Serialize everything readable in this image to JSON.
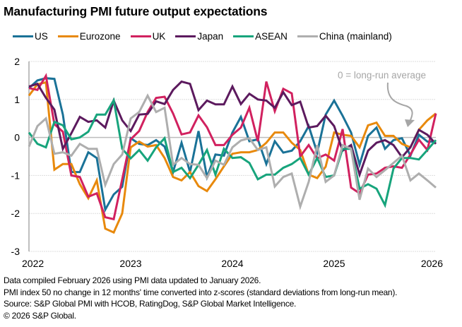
{
  "title": "Manufacturing PMI future output expectations",
  "chart_data": {
    "type": "line",
    "title": "Manufacturing PMI future output expectations",
    "xlabel": "",
    "ylabel": "",
    "ylim": [
      -3,
      2
    ],
    "yticks": [
      2,
      1,
      0,
      -1,
      -2,
      -3
    ],
    "ytick_labels": [
      "2",
      "1",
      "0",
      "-1",
      "-2",
      "-3"
    ],
    "xlim": [
      "2022-01",
      "2026-01"
    ],
    "xticks": [
      "2022",
      "2023",
      "2024",
      "2025",
      "2026"
    ],
    "grid": "horizontal",
    "legend_position": "top",
    "x": [
      "2022-01",
      "2022-02",
      "2022-03",
      "2022-04",
      "2022-05",
      "2022-06",
      "2022-07",
      "2022-08",
      "2022-09",
      "2022-10",
      "2022-11",
      "2022-12",
      "2023-01",
      "2023-02",
      "2023-03",
      "2023-04",
      "2023-05",
      "2023-06",
      "2023-07",
      "2023-08",
      "2023-09",
      "2023-10",
      "2023-11",
      "2023-12",
      "2024-01",
      "2024-02",
      "2024-03",
      "2024-04",
      "2024-05",
      "2024-06",
      "2024-07",
      "2024-08",
      "2024-09",
      "2024-10",
      "2024-11",
      "2024-12",
      "2025-01",
      "2025-02",
      "2025-03",
      "2025-04",
      "2025-05",
      "2025-06",
      "2025-07",
      "2025-08",
      "2025-09",
      "2025-10",
      "2025-11",
      "2025-12",
      "2026-01"
    ],
    "series": [
      {
        "name": "US",
        "color": "#1a7297",
        "values": [
          1.3,
          1.5,
          1.56,
          1.54,
          0.6,
          -0.91,
          -0.91,
          -0.39,
          -0.54,
          -1.9,
          -1.5,
          -1.3,
          -0.02,
          -0.17,
          -0.2,
          -0.07,
          -0.24,
          -0.91,
          -0.14,
          -0.91,
          0.17,
          -1.04,
          -0.45,
          -0.48,
          0.13,
          0.54,
          -0.1,
          -0.05,
          -0.7,
          -0.1,
          -0.4,
          -0.35,
          -0.1,
          0.3,
          -0.4,
          0.6,
          0.97,
          0.57,
          0.13,
          -0.72,
          0.04,
          0.26,
          -0.3,
          -0.07,
          -0.02,
          -0.48,
          0.07,
          -0.11,
          -0.11
        ]
      },
      {
        "name": "Eurozone",
        "color": "#e8890c",
        "values": [
          1.1,
          1.4,
          1.45,
          -0.85,
          -0.7,
          -0.7,
          -1.23,
          -1.6,
          -1.13,
          -2.4,
          -2.5,
          -2.0,
          -0.26,
          -0.11,
          -0.24,
          -0.2,
          -0.54,
          -1.04,
          -1.13,
          -0.91,
          -1.28,
          -1.41,
          -1.1,
          -0.76,
          -0.43,
          -0.39,
          -0.39,
          -0.33,
          -0.14,
          0.13,
          0.13,
          -0.14,
          -0.33,
          -0.98,
          -1.07,
          -0.77,
          0.13,
          0.07,
          0.04,
          -0.26,
          0.32,
          0.39,
          0.04,
          0.04,
          -0.17,
          -0.26,
          0.2,
          0.45,
          0.63
        ]
      },
      {
        "name": "UK",
        "color": "#d1215f",
        "values": [
          1.3,
          1.25,
          1.62,
          0.35,
          0.15,
          -1.0,
          -1.04,
          -1.56,
          -1.47,
          -2.1,
          -2.15,
          -1.1,
          -0.05,
          0.17,
          0.67,
          1.04,
          1.07,
          0.63,
          0.08,
          0.13,
          0.58,
          0.27,
          -0.2,
          -0.2,
          0.07,
          0.26,
          0.78,
          -0.1,
          1.47,
          0.69,
          1.28,
          1.16,
          -0.5,
          -0.2,
          -0.55,
          -0.45,
          -0.61,
          0.22,
          -1.32,
          -1.47,
          -0.98,
          -0.95,
          -0.8,
          -0.76,
          -0.8,
          -0.45,
          -0.06,
          -0.33,
          0.63
        ]
      },
      {
        "name": "Japan",
        "color": "#5c1a5e",
        "values": [
          1.34,
          1.41,
          1.04,
          0.73,
          -0.3,
          0.11,
          0.54,
          0.41,
          0.45,
          0.26,
          0.97,
          0.45,
          0.17,
          0.6,
          0.62,
          0.95,
          0.88,
          1.25,
          1.47,
          1.41,
          0.72,
          0.97,
          0.87,
          0.87,
          1.34,
          0.88,
          1.15,
          1.0,
          0.97,
          0.78,
          1.19,
          0.85,
          0.94,
          0.26,
          0.3,
          0.57,
          0.3,
          -0.35,
          -0.2,
          -0.98,
          -0.35,
          -0.14,
          -0.07,
          -0.2,
          -0.52,
          -0.26,
          0.2,
          0.07,
          -0.17
        ]
      },
      {
        "name": "ASEAN",
        "color": "#17a47c",
        "values": [
          0.13,
          -0.17,
          -0.26,
          0.41,
          0.32,
          -0.05,
          0.0,
          0.15,
          0.6,
          0.6,
          0.98,
          -0.3,
          -0.55,
          -0.33,
          -0.61,
          -0.26,
          -0.02,
          -0.91,
          -0.8,
          -1.07,
          -0.72,
          -0.33,
          -0.98,
          -0.3,
          -0.54,
          -0.52,
          -0.67,
          -1.1,
          -0.98,
          -0.98,
          -0.8,
          -0.7,
          -0.54,
          -0.98,
          -0.54,
          -1.04,
          -1.0,
          -0.3,
          -0.3,
          -1.35,
          -1.23,
          -1.35,
          -1.78,
          -0.82,
          -0.54,
          -0.54,
          -0.58,
          -0.33,
          -0.07
        ]
      },
      {
        "name": "China (mainland)",
        "color": "#aeaeae",
        "values": [
          -0.24,
          0.3,
          0.5,
          -0.43,
          -0.39,
          -0.48,
          -0.17,
          -0.3,
          -0.3,
          -1.25,
          -0.7,
          -0.45,
          0.5,
          0.67,
          1.1,
          0.67,
          0.78,
          -0.72,
          -0.54,
          -0.7,
          -0.72,
          -1.07,
          -0.61,
          -0.72,
          -0.26,
          -0.08,
          -0.02,
          -0.33,
          -0.26,
          -1.29,
          -1.04,
          -0.95,
          -1.82,
          -1.17,
          -0.2,
          -1.17,
          -1.0,
          -0.2,
          -0.3,
          -1.64,
          -0.82,
          -1.04,
          -0.86,
          -0.67,
          -0.48,
          -1.13,
          -0.95,
          -1.13,
          -1.32
        ]
      }
    ],
    "annotations": [
      {
        "text": "0 = long-run average",
        "arrow_to": {
          "x": "2025-10",
          "y": 0.25
        }
      }
    ]
  },
  "footnotes": [
    "Data compiled February 2026 using PMI data updated to January 2026.",
    "PMI index 50 no change in 12 months' time converted into z-scores (standard deviations from long-run mean).",
    "Source: S&P Global PMI with HCOB, RatingDog, S&P Global Market Intelligence.",
    "© 2026 S&P Global."
  ]
}
